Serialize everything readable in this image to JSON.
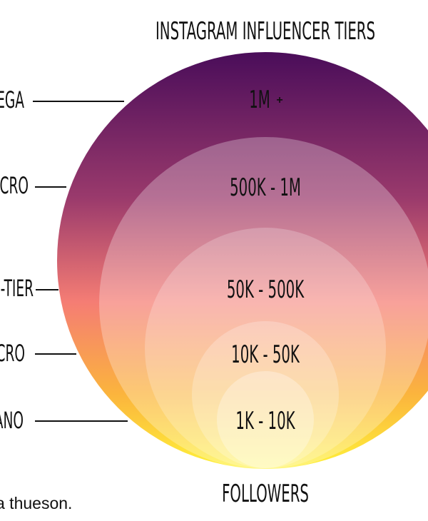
{
  "title": "INSTAGRAM INFLUENCER TIERS",
  "footer": "FOLLOWERS",
  "credit": "a thueson.",
  "tiers": [
    {
      "side": "EGA",
      "range": "1M",
      "extra": "+"
    },
    {
      "side": "ACRO",
      "range": "500K - 1M"
    },
    {
      "side": "-TIER",
      "range": "50K - 500K"
    },
    {
      "side": "CRO",
      "range": "10K - 50K"
    },
    {
      "side": "ANO",
      "range": "1K - 10K"
    }
  ],
  "colors": {
    "outer_top": "#4a0d5a",
    "outer_mid": "#c0566c",
    "outer_lower": "#f98470",
    "outer_bottom": "#fff23a"
  }
}
